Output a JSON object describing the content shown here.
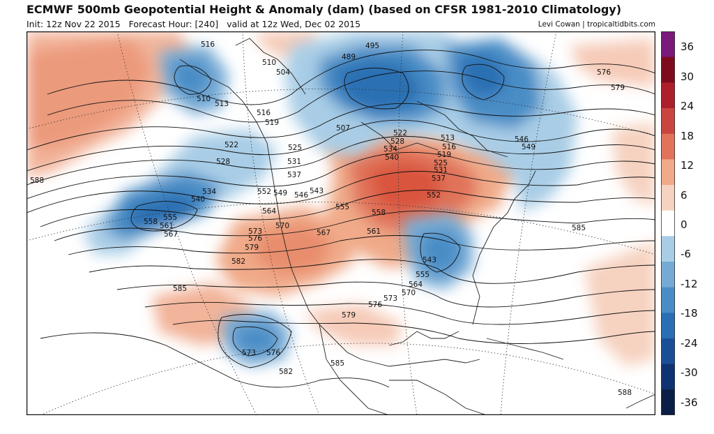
{
  "header": {
    "title": "ECMWF 500mb Geopotential Height & Anomaly (dam) (based on CFSR 1981-2010 Climatology)",
    "init": "Init: 12z Nov 22 2015",
    "forecast_hour": "Forecast Hour: [240]",
    "valid": "valid at 12z Wed, Dec 02 2015",
    "credit": "Levi Cowan | tropicaltidbits.com"
  },
  "colorbar": {
    "tick_labels": [
      "36",
      "30",
      "24",
      "18",
      "12",
      "6",
      "0",
      "-6",
      "-12",
      "-18",
      "-24",
      "-30",
      "-36"
    ],
    "colors": [
      "#0b1e45",
      "#0f3270",
      "#1a4f96",
      "#2a6fb3",
      "#4a8dc6",
      "#76aad5",
      "#a9cde6",
      "#ffffff",
      "#f6d2c0",
      "#f0aa89",
      "#e0735a",
      "#c9453f",
      "#ad1f2b",
      "#7e0b1c",
      "#7a1a7a"
    ]
  },
  "contour_labels": [
    "516",
    "510",
    "504",
    "489",
    "495",
    "513",
    "516",
    "519",
    "510",
    "522",
    "525",
    "531",
    "537",
    "528",
    "507",
    "522",
    "528",
    "534",
    "540",
    "513",
    "516",
    "519",
    "525",
    "531",
    "537",
    "546",
    "549",
    "534",
    "540",
    "552",
    "549",
    "546",
    "543",
    "555",
    "558",
    "552",
    "561",
    "558",
    "561",
    "555",
    "567",
    "564",
    "570",
    "567",
    "573",
    "576",
    "579",
    "582",
    "585",
    "588",
    "585",
    "564",
    "555",
    "543",
    "570",
    "573",
    "576",
    "579",
    "573",
    "576",
    "582",
    "585",
    "588",
    "576",
    "579"
  ]
}
